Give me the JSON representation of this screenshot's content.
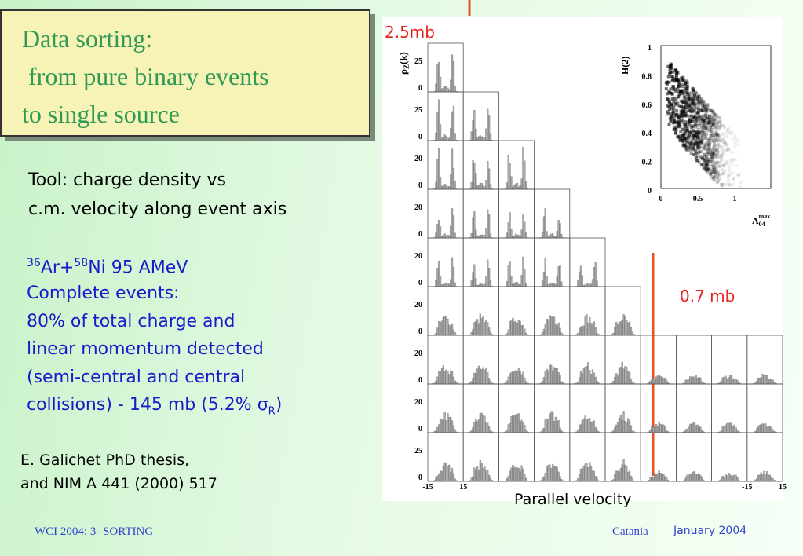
{
  "title": [
    "Data sorting:",
    " from pure binary events",
    "to single source"
  ],
  "tool": [
    "Tool: charge density vs",
    "c.m. velocity along event axis"
  ],
  "reaction": {
    "a1": "36",
    "e1": "Ar+",
    "a2": "58",
    "e2": "Ni 95 AMeV"
  },
  "details": [
    "Complete events:",
    "80% of total charge and",
    "linear momentum detected",
    "(semi-central and central",
    "collisions) - 145 mb (5.2% "
  ],
  "sigma": {
    "symbol": "σ",
    "sub": "R",
    "close": ")"
  },
  "reference": [
    "E. Galichet PhD thesis,",
    "and NIM A 441 (2000) 517"
  ],
  "figure": {
    "label_top": "2.5mb",
    "label_mid": "0.7 mb",
    "x_label": "Parallel velocity",
    "y_label": {
      "main": "ρ",
      "sub": "Z",
      "rest": "(k)"
    },
    "row_ticks": [
      [
        "25",
        "0"
      ],
      [
        "25",
        "0"
      ],
      [
        "20",
        "0"
      ],
      [
        "20",
        "0"
      ],
      [
        "20",
        "0"
      ],
      [
        "20",
        "0"
      ],
      [
        "20",
        "0"
      ],
      [
        "20",
        "0"
      ],
      [
        "25",
        "0"
      ]
    ],
    "x_ticks": [
      "-15",
      "15",
      "-15",
      "15"
    ],
    "inset": {
      "y_label": "H(2)",
      "yticks": [
        "1",
        "0.8",
        "0.6",
        "0.4",
        "0.2",
        "0"
      ],
      "xticks": [
        "0",
        "0.5",
        "1"
      ],
      "x_label": {
        "main": "Λ",
        "sub": "04",
        "sup": "max"
      }
    }
  },
  "footer": {
    "left": "WCI 2004: 3- SORTING",
    "place": "Catania",
    "date": "January 2004"
  }
}
